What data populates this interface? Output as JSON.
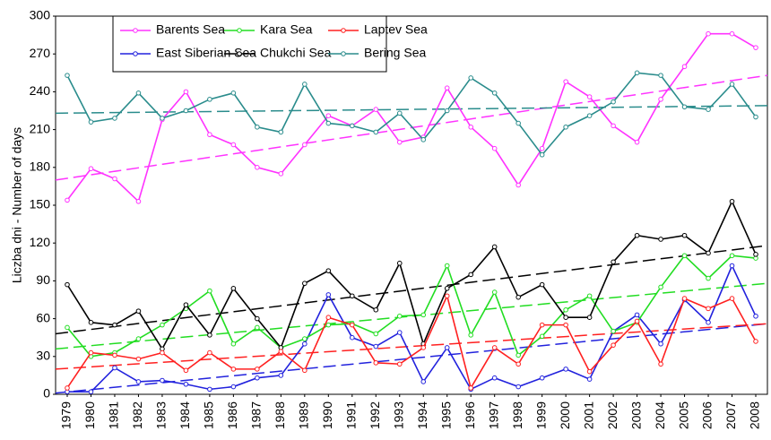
{
  "chart_data": {
    "type": "line",
    "y_label": "Liczba dni - Number of days",
    "categories": [
      "1979",
      "1980",
      "1981",
      "1982",
      "1983",
      "1984",
      "1985",
      "1986",
      "1987",
      "1988",
      "1989",
      "1990",
      "1991",
      "1992",
      "1993",
      "1994",
      "1995",
      "1996",
      "1997",
      "1998",
      "1999",
      "2000",
      "2001",
      "2002",
      "2003",
      "2004",
      "2005",
      "2006",
      "2007",
      "2008"
    ],
    "ylim": [
      0,
      300
    ],
    "yticks": [
      0,
      30,
      60,
      90,
      120,
      150,
      180,
      210,
      240,
      270,
      300
    ],
    "grid": false,
    "legend": "top-left",
    "series": [
      {
        "name": "Barents Sea",
        "color": "#ff33ff",
        "values": [
          154,
          179,
          171,
          153,
          218,
          240,
          206,
          198,
          180,
          175,
          198,
          221,
          213,
          226,
          200,
          204,
          243,
          212,
          195,
          166,
          195,
          248,
          236,
          213,
          200,
          234,
          260,
          286,
          286,
          275
        ],
        "trend": [
          170,
          253
        ]
      },
      {
        "name": "East Siberian Sea",
        "color": "#2222dd",
        "values": [
          2,
          2,
          21,
          10,
          11,
          8,
          4,
          6,
          13,
          15,
          40,
          79,
          45,
          38,
          49,
          10,
          37,
          4,
          13,
          6,
          13,
          20,
          12,
          50,
          63,
          40,
          75,
          57,
          102,
          62
        ],
        "trend": [
          1,
          56
        ]
      },
      {
        "name": "Kara Sea",
        "color": "#22dd22",
        "values": [
          53,
          30,
          33,
          44,
          55,
          68,
          82,
          40,
          53,
          37,
          44,
          55,
          56,
          48,
          62,
          63,
          102,
          47,
          81,
          31,
          46,
          67,
          78,
          50,
          57,
          85,
          110,
          92,
          110,
          108
        ],
        "trend": [
          36,
          88
        ]
      },
      {
        "name": "Chukchi Sea",
        "color": "#000000",
        "values": [
          87,
          57,
          55,
          66,
          36,
          71,
          47,
          84,
          60,
          37,
          88,
          98,
          78,
          67,
          104,
          40,
          84,
          95,
          117,
          77,
          87,
          61,
          61,
          105,
          126,
          123,
          126,
          112,
          153,
          111
        ],
        "trend": [
          48,
          118
        ]
      },
      {
        "name": "Laptev Sea",
        "color": "#ff2020",
        "values": [
          5,
          33,
          31,
          28,
          33,
          19,
          33,
          20,
          20,
          34,
          19,
          61,
          55,
          25,
          24,
          37,
          78,
          5,
          37,
          24,
          55,
          55,
          18,
          39,
          58,
          24,
          76,
          68,
          76,
          42
        ],
        "trend": [
          20,
          56
        ]
      },
      {
        "name": "Bering Sea",
        "color": "#2a8c8c",
        "values": [
          253,
          216,
          219,
          239,
          219,
          225,
          234,
          239,
          212,
          208,
          246,
          215,
          213,
          208,
          223,
          202,
          225,
          251,
          239,
          215,
          190,
          212,
          221,
          232,
          255,
          253,
          228,
          226,
          246,
          220
        ],
        "trend": [
          223,
          229
        ]
      }
    ]
  }
}
